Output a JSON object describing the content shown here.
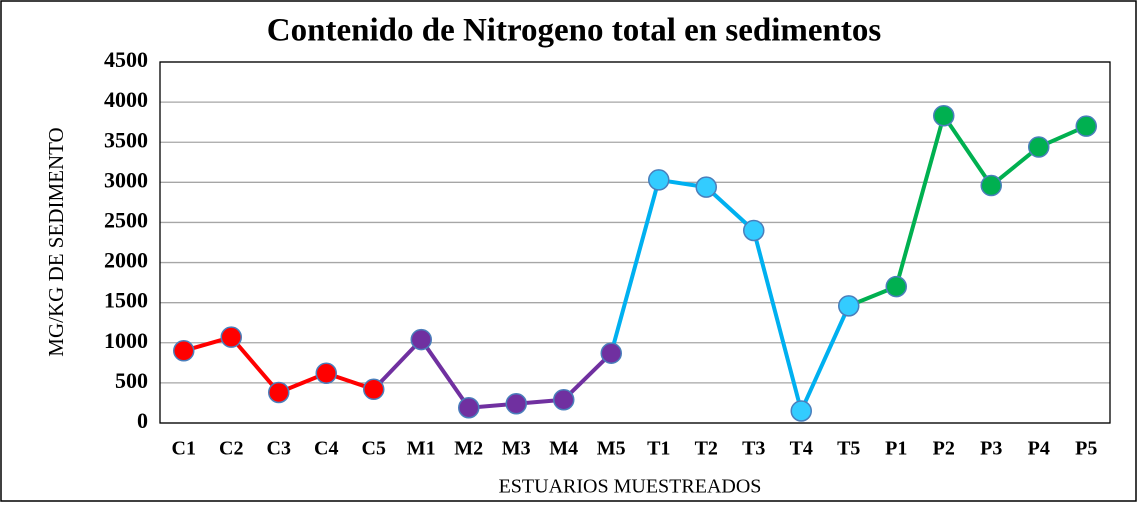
{
  "chart_data": {
    "type": "line",
    "title": "Contenido de Nitrogeno total en sedimentos",
    "x_label": "ESTUARIOS MUESTREADOS",
    "y_label": "MG/KG DE SEDIMENTO",
    "categories": [
      "C1",
      "C2",
      "C3",
      "C4",
      "C5",
      "M1",
      "M2",
      "M3",
      "M4",
      "M5",
      "T1",
      "T2",
      "T3",
      "T4",
      "T5",
      "P1",
      "P2",
      "P3",
      "P4",
      "P5"
    ],
    "values": [
      900,
      1070,
      380,
      620,
      420,
      1040,
      190,
      240,
      290,
      870,
      3030,
      2940,
      2400,
      150,
      1460,
      1700,
      3830,
      2960,
      3440,
      3700
    ],
    "point_colors": [
      "#ff0000",
      "#ff0000",
      "#ff0000",
      "#ff0000",
      "#ff0000",
      "#7030a0",
      "#7030a0",
      "#7030a0",
      "#7030a0",
      "#7030a0",
      "#00b0f0",
      "#00b0f0",
      "#00b0f0",
      "#00b0f0",
      "#00b0f0",
      "#00b050",
      "#00b050",
      "#00b050",
      "#00b050",
      "#00b050"
    ],
    "ylim": [
      0,
      4500
    ],
    "yticks": [
      0,
      500,
      1000,
      1500,
      2000,
      2500,
      3000,
      3500,
      4000,
      4500
    ],
    "grid": true
  }
}
